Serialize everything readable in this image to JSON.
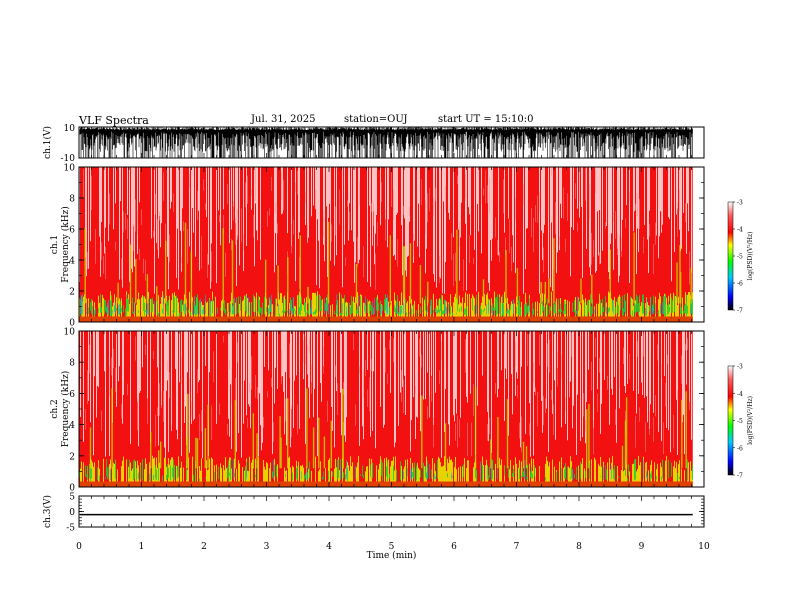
{
  "header": {
    "title": "VLF Spectra",
    "date": "Jul. 31, 2025",
    "station": "station=OUJ",
    "start": "start UT =  15:10:0"
  },
  "chart_data": {
    "type": "heatmap",
    "title": "VLF Spectra",
    "panels": [
      {
        "id": "ch1-waveform",
        "type": "line",
        "ylabel": "ch.1(V)",
        "ylim": [
          -10,
          10
        ],
        "yticks": [
          "10",
          "-10"
        ],
        "description_trace": "dense noise waveform, mostly near top clipping level with spikes down to about -10 V"
      },
      {
        "id": "ch1-spectrogram",
        "type": "heatmap",
        "ylabel": "ch.1\nFrequency (kHz)",
        "ylabel_top": "ch.1",
        "ylabel_bottom": "Frequency (kHz)",
        "ylim": [
          0,
          10
        ],
        "yticks": [
          "0",
          "2",
          "4",
          "6",
          "8",
          "10"
        ],
        "colorbar": {
          "label": "log(PSD)(V²/Hz)",
          "range": [
            -7,
            -3
          ],
          "ticks": [
            "-3",
            "-4",
            "-5",
            "-6",
            "-7"
          ]
        }
      },
      {
        "id": "ch2-spectrogram",
        "type": "heatmap",
        "ylabel_top": "ch.2",
        "ylabel_bottom": "Frequency (kHz)",
        "ylim": [
          0,
          10
        ],
        "yticks": [
          "0",
          "2",
          "4",
          "6",
          "8",
          "10"
        ],
        "colorbar": {
          "label": "log(PSD)(V²/Hz)",
          "range": [
            -7,
            -3
          ],
          "ticks": [
            "-3",
            "-4",
            "-5",
            "-6",
            "-7"
          ]
        }
      },
      {
        "id": "ch3-waveform",
        "type": "line",
        "ylabel": "ch.3(V)",
        "ylim": [
          -5,
          5
        ],
        "yticks": [
          "5",
          "0",
          "-5"
        ],
        "constant_value": -1.0
      }
    ],
    "xlabel": "Time (min)",
    "xlim": [
      0,
      10
    ],
    "xticks": [
      "0",
      "1",
      "2",
      "3",
      "4",
      "5",
      "6",
      "7",
      "8",
      "9",
      "10"
    ],
    "data_end_min": 9.82,
    "colormap": [
      "#000000",
      "#0000ff",
      "#00c8ff",
      "#00ff00",
      "#ffff00",
      "#ff0000",
      "#ffffff"
    ]
  }
}
